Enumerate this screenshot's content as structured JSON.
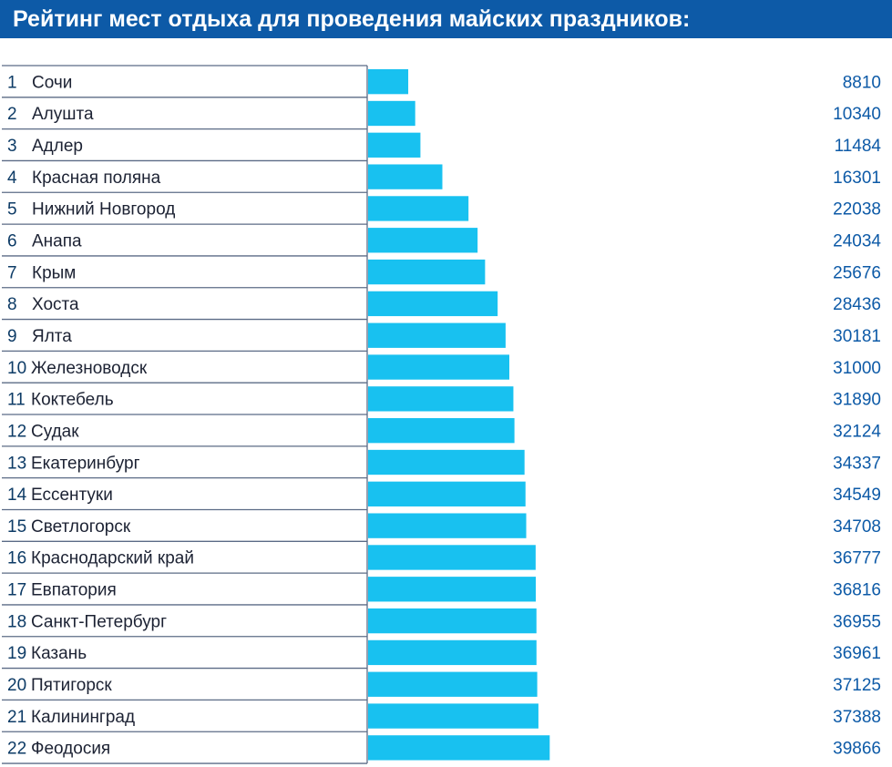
{
  "title": "Рейтинг мест отдыха для проведения майских праздников:",
  "colors": {
    "header_bg": "#0d5aa7",
    "bar": "#18c1f0",
    "text": "#0d3b66",
    "value_text": "#0d5aa7",
    "grid": "#5b6b86"
  },
  "chart_data": {
    "type": "bar",
    "orientation": "horizontal",
    "title": "Рейтинг мест отдыха для проведения майских праздников:",
    "xlim": [
      0,
      40000
    ],
    "rows": [
      {
        "rank": "1",
        "name": "Сочи",
        "value": 8810,
        "label": "8810"
      },
      {
        "rank": "2",
        "name": "Алушта",
        "value": 10340,
        "label": "10340"
      },
      {
        "rank": "3",
        "name": "Адлер",
        "value": 11484,
        "label": "11484"
      },
      {
        "rank": "4",
        "name": "Красная поляна",
        "value": 16301,
        "label": "16301"
      },
      {
        "rank": "5",
        "name": "Нижний Новгород",
        "value": 22038,
        "label": "22038"
      },
      {
        "rank": "6",
        "name": "Анапа",
        "value": 24034,
        "label": "24034"
      },
      {
        "rank": "7",
        "name": "Крым",
        "value": 25676,
        "label": "25676"
      },
      {
        "rank": "8",
        "name": "Хоста",
        "value": 28436,
        "label": "28436"
      },
      {
        "rank": "9",
        "name": "Ялта",
        "value": 30181,
        "label": "30181"
      },
      {
        "rank": "10",
        "name": "Железноводск",
        "value": 31000,
        "label": "31000"
      },
      {
        "rank": "11",
        "name": "Коктебель",
        "value": 31890,
        "label": "31890"
      },
      {
        "rank": "12",
        "name": "Судак",
        "value": 32124,
        "label": "32124"
      },
      {
        "rank": "13",
        "name": "Екатеринбург",
        "value": 34337,
        "label": "34337"
      },
      {
        "rank": "14",
        "name": "Ессентуки",
        "value": 34549,
        "label": "34549"
      },
      {
        "rank": "15",
        "name": "Светлогорск",
        "value": 34708,
        "label": "34708"
      },
      {
        "rank": "16",
        "name": "Краснодарский край",
        "value": 36777,
        "label": "36777"
      },
      {
        "rank": "17",
        "name": "Евпатория",
        "value": 36816,
        "label": "36816"
      },
      {
        "rank": "18",
        "name": "Санкт-Петербург",
        "value": 36955,
        "label": "36955"
      },
      {
        "rank": "19",
        "name": "Казань",
        "value": 36961,
        "label": "36961"
      },
      {
        "rank": "20",
        "name": "Пятигорск",
        "value": 37125,
        "label": "37125"
      },
      {
        "rank": "21",
        "name": "Калининград",
        "value": 37388,
        "label": "37388"
      },
      {
        "rank": "22",
        "name": "Феодосия",
        "value": 39866,
        "label": "39866"
      }
    ]
  }
}
